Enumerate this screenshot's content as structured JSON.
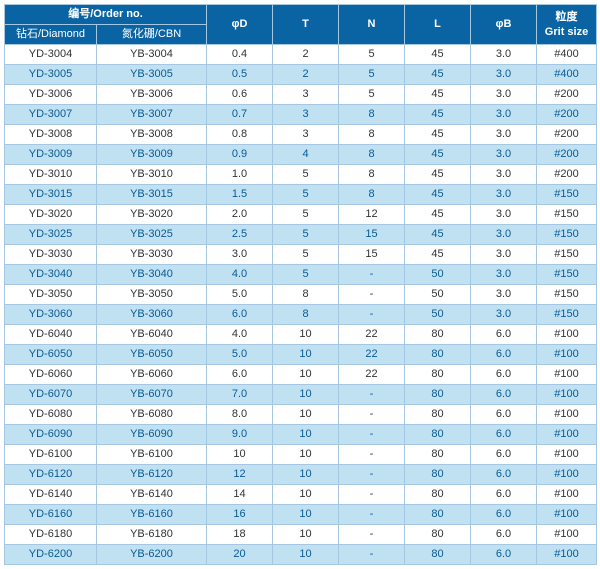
{
  "table": {
    "header": {
      "orderNo": "编号/Order no.",
      "diamond": "钻石/Diamond",
      "cbn": "氮化硼/CBN",
      "phiD": "φD",
      "t": "T",
      "n": "N",
      "l": "L",
      "phiB": "φB",
      "grit": "粒度",
      "gritEn": "Grit size"
    },
    "colors": {
      "headerBg": "#0a64a4",
      "headerFg": "#ffffff",
      "border": "#a6c7e2",
      "oddBg": "#ffffff",
      "oddFg": "#333333",
      "evenBg": "#bfe1f2",
      "evenFg": "#0a5a94"
    },
    "rows": [
      {
        "diamond": "YD-3004",
        "cbn": "YB-3004",
        "d": "0.4",
        "t": "2",
        "n": "5",
        "l": "45",
        "b": "3.0",
        "grit": "#400"
      },
      {
        "diamond": "YD-3005",
        "cbn": "YB-3005",
        "d": "0.5",
        "t": "2",
        "n": "5",
        "l": "45",
        "b": "3.0",
        "grit": "#400"
      },
      {
        "diamond": "YD-3006",
        "cbn": "YB-3006",
        "d": "0.6",
        "t": "3",
        "n": "5",
        "l": "45",
        "b": "3.0",
        "grit": "#200"
      },
      {
        "diamond": "YD-3007",
        "cbn": "YB-3007",
        "d": "0.7",
        "t": "3",
        "n": "8",
        "l": "45",
        "b": "3.0",
        "grit": "#200"
      },
      {
        "diamond": "YD-3008",
        "cbn": "YB-3008",
        "d": "0.8",
        "t": "3",
        "n": "8",
        "l": "45",
        "b": "3.0",
        "grit": "#200"
      },
      {
        "diamond": "YD-3009",
        "cbn": "YB-3009",
        "d": "0.9",
        "t": "4",
        "n": "8",
        "l": "45",
        "b": "3.0",
        "grit": "#200"
      },
      {
        "diamond": "YD-3010",
        "cbn": "YB-3010",
        "d": "1.0",
        "t": "5",
        "n": "8",
        "l": "45",
        "b": "3.0",
        "grit": "#200"
      },
      {
        "diamond": "YD-3015",
        "cbn": "YB-3015",
        "d": "1.5",
        "t": "5",
        "n": "8",
        "l": "45",
        "b": "3.0",
        "grit": "#150"
      },
      {
        "diamond": "YD-3020",
        "cbn": "YB-3020",
        "d": "2.0",
        "t": "5",
        "n": "12",
        "l": "45",
        "b": "3.0",
        "grit": "#150"
      },
      {
        "diamond": "YD-3025",
        "cbn": "YB-3025",
        "d": "2.5",
        "t": "5",
        "n": "15",
        "l": "45",
        "b": "3.0",
        "grit": "#150"
      },
      {
        "diamond": "YD-3030",
        "cbn": "YB-3030",
        "d": "3.0",
        "t": "5",
        "n": "15",
        "l": "45",
        "b": "3.0",
        "grit": "#150"
      },
      {
        "diamond": "YD-3040",
        "cbn": "YB-3040",
        "d": "4.0",
        "t": "5",
        "n": "-",
        "l": "50",
        "b": "3.0",
        "grit": "#150"
      },
      {
        "diamond": "YD-3050",
        "cbn": "YB-3050",
        "d": "5.0",
        "t": "8",
        "n": "-",
        "l": "50",
        "b": "3.0",
        "grit": "#150"
      },
      {
        "diamond": "YD-3060",
        "cbn": "YB-3060",
        "d": "6.0",
        "t": "8",
        "n": "-",
        "l": "50",
        "b": "3.0",
        "grit": "#150"
      },
      {
        "diamond": "YD-6040",
        "cbn": "YB-6040",
        "d": "4.0",
        "t": "10",
        "n": "22",
        "l": "80",
        "b": "6.0",
        "grit": "#100"
      },
      {
        "diamond": "YD-6050",
        "cbn": "YB-6050",
        "d": "5.0",
        "t": "10",
        "n": "22",
        "l": "80",
        "b": "6.0",
        "grit": "#100"
      },
      {
        "diamond": "YD-6060",
        "cbn": "YB-6060",
        "d": "6.0",
        "t": "10",
        "n": "22",
        "l": "80",
        "b": "6.0",
        "grit": "#100"
      },
      {
        "diamond": "YD-6070",
        "cbn": "YB-6070",
        "d": "7.0",
        "t": "10",
        "n": "-",
        "l": "80",
        "b": "6.0",
        "grit": "#100"
      },
      {
        "diamond": "YD-6080",
        "cbn": "YB-6080",
        "d": "8.0",
        "t": "10",
        "n": "-",
        "l": "80",
        "b": "6.0",
        "grit": "#100"
      },
      {
        "diamond": "YD-6090",
        "cbn": "YB-6090",
        "d": "9.0",
        "t": "10",
        "n": "-",
        "l": "80",
        "b": "6.0",
        "grit": "#100"
      },
      {
        "diamond": "YD-6100",
        "cbn": "YB-6100",
        "d": "10",
        "t": "10",
        "n": "-",
        "l": "80",
        "b": "6.0",
        "grit": "#100"
      },
      {
        "diamond": "YD-6120",
        "cbn": "YB-6120",
        "d": "12",
        "t": "10",
        "n": "-",
        "l": "80",
        "b": "6.0",
        "grit": "#100"
      },
      {
        "diamond": "YD-6140",
        "cbn": "YB-6140",
        "d": "14",
        "t": "10",
        "n": "-",
        "l": "80",
        "b": "6.0",
        "grit": "#100"
      },
      {
        "diamond": "YD-6160",
        "cbn": "YB-6160",
        "d": "16",
        "t": "10",
        "n": "-",
        "l": "80",
        "b": "6.0",
        "grit": "#100"
      },
      {
        "diamond": "YD-6180",
        "cbn": "YB-6180",
        "d": "18",
        "t": "10",
        "n": "-",
        "l": "80",
        "b": "6.0",
        "grit": "#100"
      },
      {
        "diamond": "YD-6200",
        "cbn": "YB-6200",
        "d": "20",
        "t": "10",
        "n": "-",
        "l": "80",
        "b": "6.0",
        "grit": "#100"
      }
    ]
  }
}
